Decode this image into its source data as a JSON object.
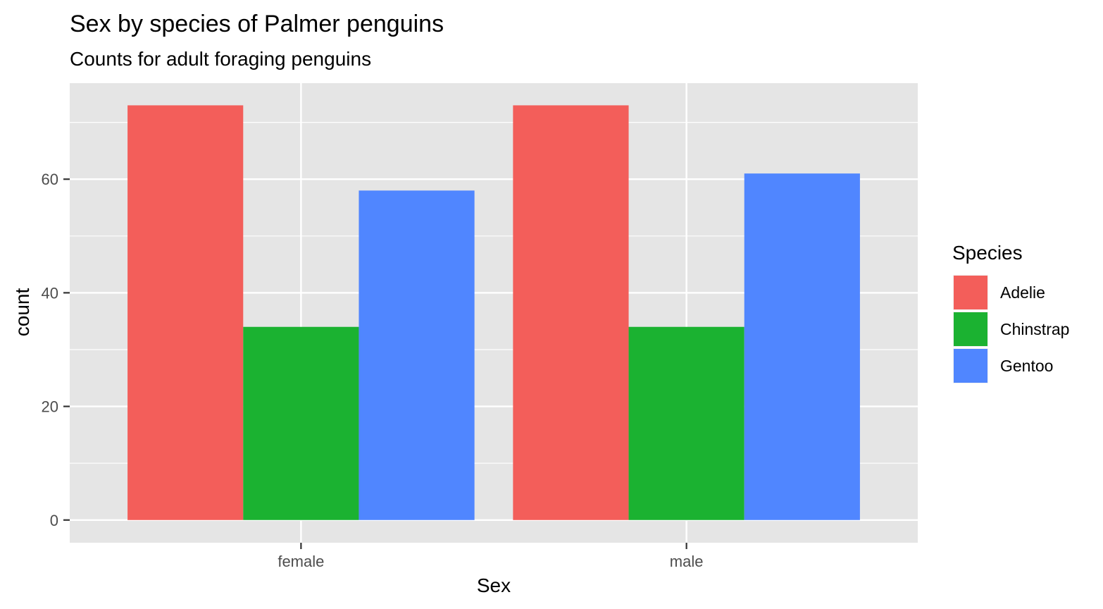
{
  "chart_data": {
    "type": "bar",
    "title": "Sex by species of Palmer penguins",
    "subtitle": "Counts for adult foraging penguins",
    "xlabel": "Sex",
    "ylabel": "count",
    "categories": [
      "female",
      "male"
    ],
    "series": [
      {
        "name": "Adelie",
        "color": "#F35E5A",
        "values": [
          73,
          73
        ]
      },
      {
        "name": "Chinstrap",
        "color": "#1BB231",
        "values": [
          34,
          34
        ]
      },
      {
        "name": "Gentoo",
        "color": "#5086FF",
        "values": [
          58,
          61
        ]
      }
    ],
    "ylim": [
      -4,
      76.9
    ],
    "y_ticks": [
      0,
      20,
      40,
      60
    ],
    "y_tick_labels": [
      "0",
      "20",
      "40",
      "60"
    ],
    "grid": true,
    "legend": {
      "title": "Species",
      "position": "right"
    },
    "panel_color": "#E5E5E5",
    "grid_color": "#FFFFFF"
  }
}
